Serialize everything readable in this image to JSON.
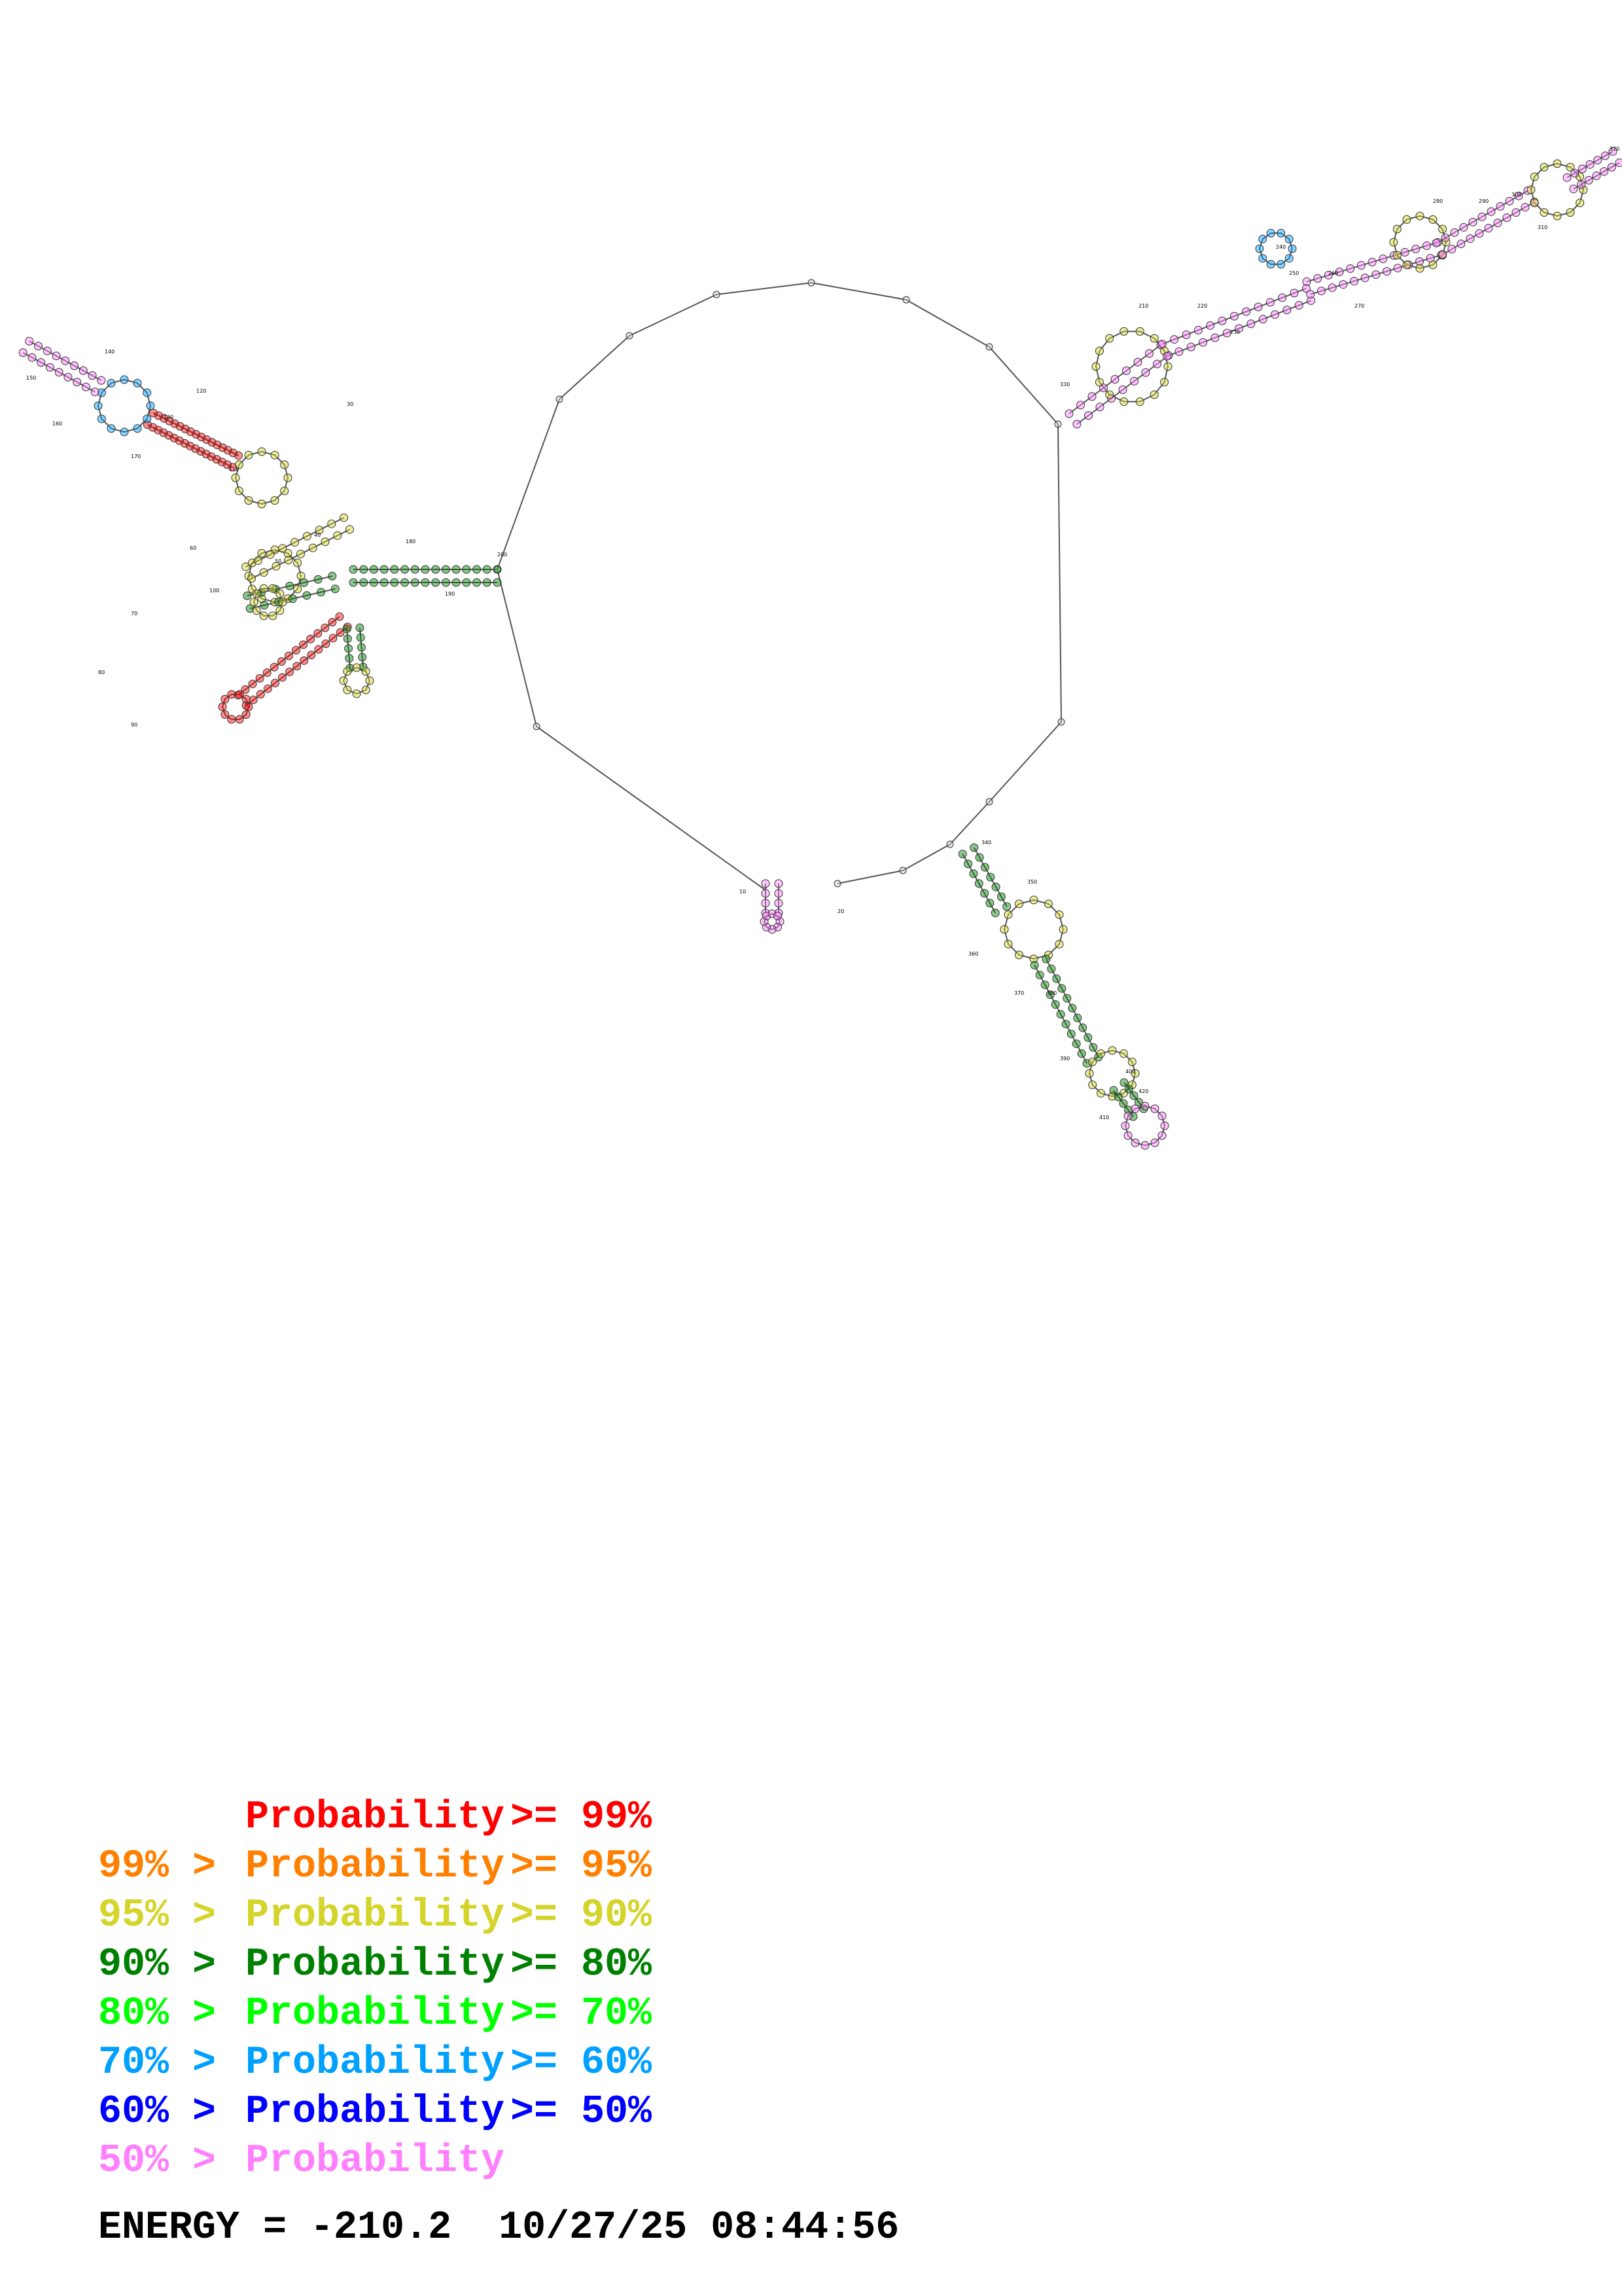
{
  "legend": {
    "rows": [
      {
        "prefix": "",
        "op": "",
        "label": "Probability",
        "suffix": ">= 99%",
        "color": "#ff0000"
      },
      {
        "prefix": "99%",
        "op": ">",
        "label": "Probability",
        "suffix": ">= 95%",
        "color": "#ff8000"
      },
      {
        "prefix": "95%",
        "op": ">",
        "label": "Probability",
        "suffix": ">= 90%",
        "color": "#d4d42b"
      },
      {
        "prefix": "90%",
        "op": ">",
        "label": "Probability",
        "suffix": ">= 80%",
        "color": "#008000"
      },
      {
        "prefix": "80%",
        "op": ">",
        "label": "Probability",
        "suffix": ">= 70%",
        "color": "#00ff00"
      },
      {
        "prefix": "70%",
        "op": ">",
        "label": "Probability",
        "suffix": ">= 60%",
        "color": "#00a0ff"
      },
      {
        "prefix": "60%",
        "op": ">",
        "label": "Probability",
        "suffix": ">= 50%",
        "color": "#0000ff"
      },
      {
        "prefix": "50%",
        "op": ">",
        "label": "Probability",
        "suffix": "",
        "color": "#ff80ff"
      }
    ]
  },
  "footer": {
    "energy_label": "ENERGY = -210.2",
    "timestamp": "10/27/25 08:44:56"
  },
  "nucleotide_labels": [
    "10",
    "20",
    "30",
    "40",
    "50",
    "60",
    "70",
    "80",
    "90",
    "100",
    "110",
    "120",
    "130",
    "140",
    "150",
    "160",
    "170",
    "180",
    "190",
    "200",
    "210",
    "220",
    "230",
    "240",
    "250",
    "260",
    "270",
    "280",
    "290",
    "300",
    "310",
    "320",
    "330",
    "340",
    "350",
    "360",
    "370",
    "380",
    "390",
    "400",
    "410",
    "420",
    "430",
    "440",
    "450",
    "460"
  ]
}
